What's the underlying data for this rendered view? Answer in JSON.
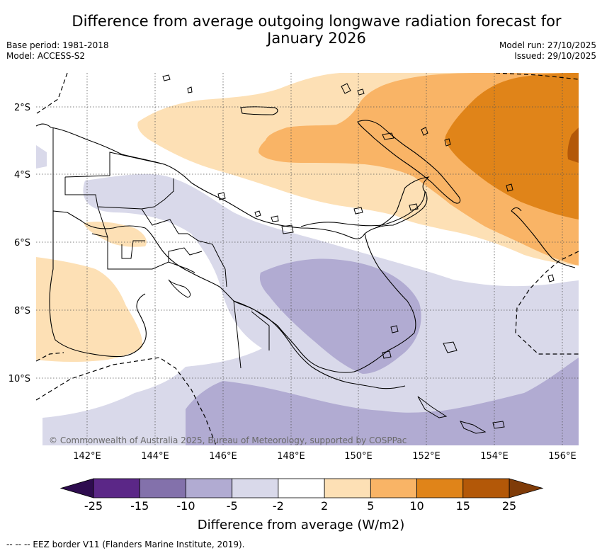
{
  "title": {
    "line1": "Difference from average outgoing longwave radiation forecast for",
    "line2": "January 2026"
  },
  "meta": {
    "base_period": "Base period: 1981-2018",
    "model": "Model: ACCESS-S2",
    "model_run": "Model run: 27/10/2025",
    "issued": "Issued: 29/10/2025"
  },
  "map": {
    "lat_labels": [
      "2°S",
      "4°S",
      "6°S",
      "8°S",
      "10°S"
    ],
    "lon_labels": [
      "142°E",
      "144°E",
      "146°E",
      "148°E",
      "150°E",
      "152°E",
      "154°E",
      "156°E"
    ],
    "copyright": "© Commonwealth of Australia 2025, Bureau of Meteorology, supported by COSPPac"
  },
  "colorbar": {
    "label": "Difference from average (W/m2)",
    "ticks": [
      "-25",
      "-15",
      "-10",
      "-5",
      "-2",
      "2",
      "5",
      "10",
      "15",
      "25"
    ],
    "colors": [
      "#5b2787",
      "#8371ab",
      "#b1abd2",
      "#d9d9ea",
      "#ffffff",
      "#fde0b5",
      "#f9b466",
      "#e08419",
      "#b35808"
    ],
    "extend_low_color": "#2e0c4f",
    "extend_high_color": "#7f3b08"
  },
  "footnote": "--  --  -- EEZ border V11 (Flanders Marine Institute, 2019)."
}
